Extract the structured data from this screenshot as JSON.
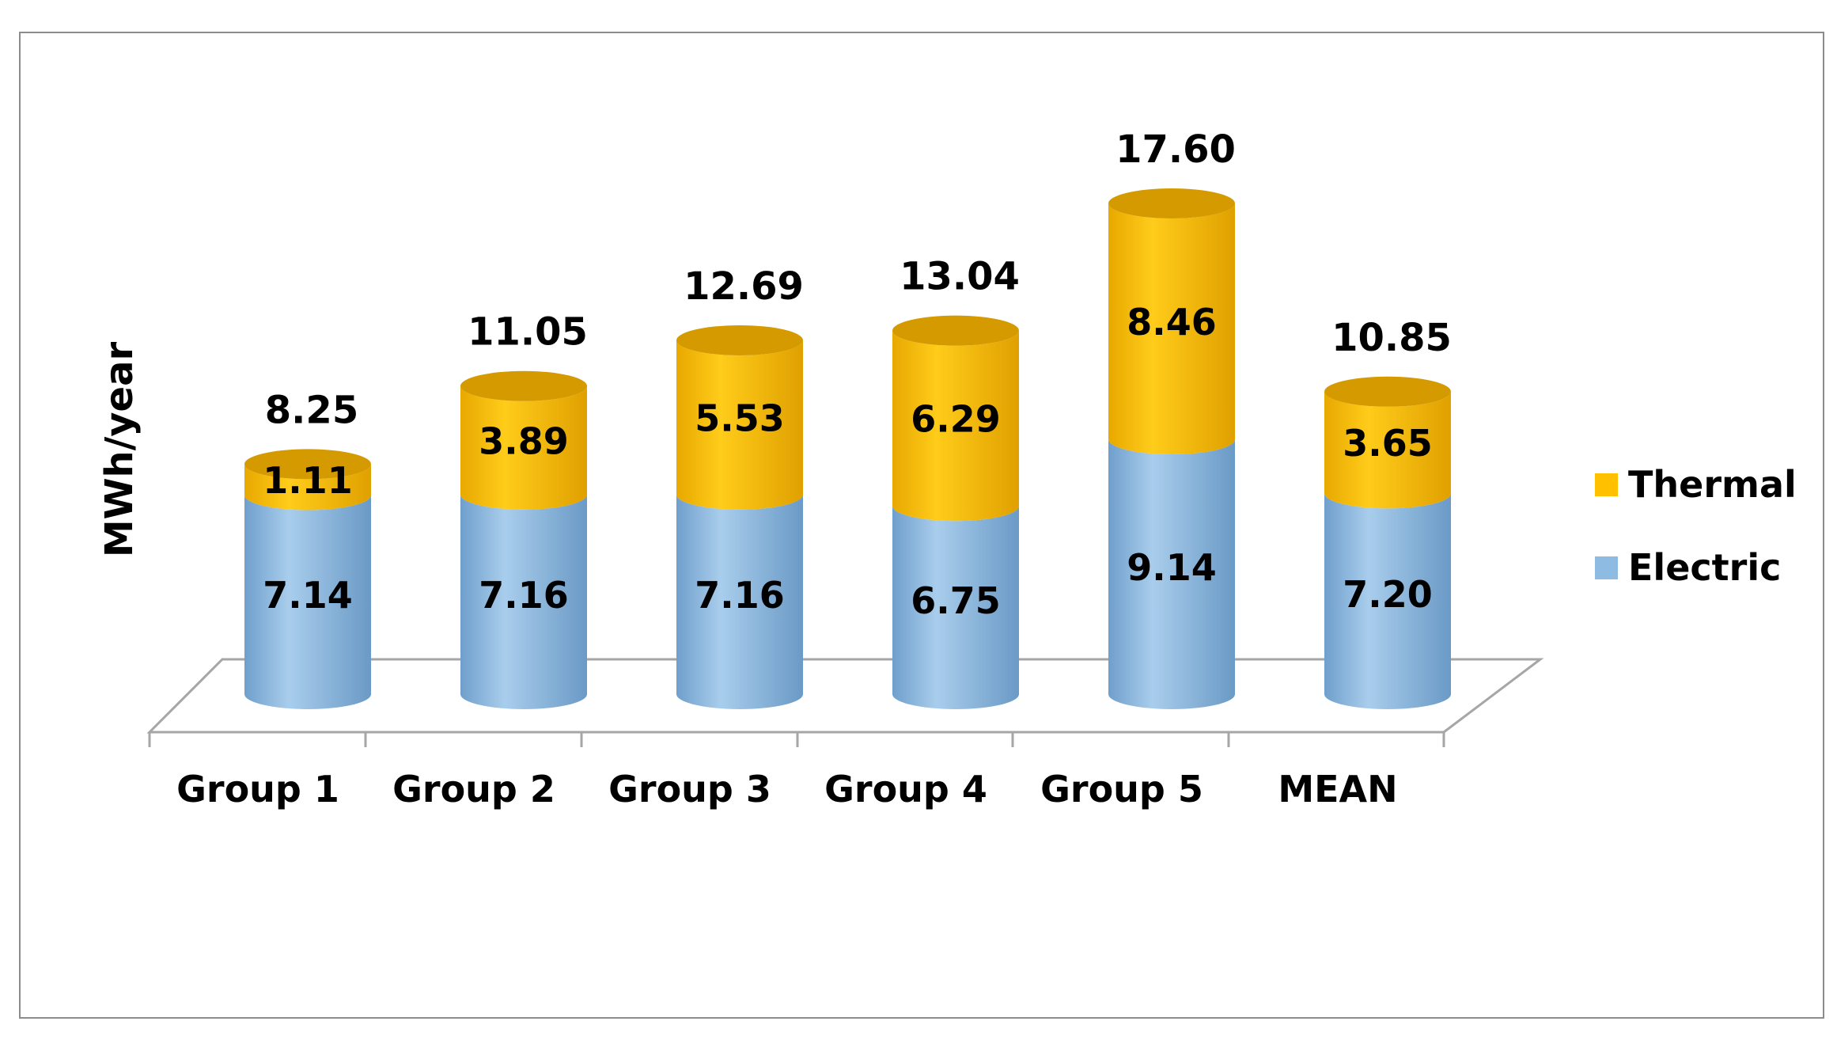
{
  "chart_data": {
    "type": "bar",
    "stacked": true,
    "style": "3d-cylinder",
    "title": "",
    "xlabel": "",
    "ylabel": "MWh/year",
    "categories": [
      "Group 1",
      "Group 2",
      "Group 3",
      "Group 4",
      "Group 5",
      "MEAN"
    ],
    "series": [
      {
        "name": "Electric",
        "color": "#8dbbe2",
        "values": [
          7.14,
          7.16,
          7.16,
          6.75,
          9.14,
          7.2
        ]
      },
      {
        "name": "Thermal",
        "color": "#ffc000",
        "values": [
          1.11,
          3.89,
          5.53,
          6.29,
          8.46,
          3.65
        ]
      }
    ],
    "totals": [
      "8.25",
      "11.05",
      "12.69",
      "13.04",
      "17.60",
      "10.85"
    ],
    "segment_labels": {
      "Electric": [
        "7.14",
        "7.16",
        "7.16",
        "6.75",
        "9.14",
        "7.20"
      ],
      "Thermal": [
        "1.11",
        "3.89",
        "5.53",
        "6.29",
        "8.46",
        "3.65"
      ]
    },
    "ylim": [
      0,
      17.6
    ],
    "grid": false,
    "legend_position": "right"
  }
}
